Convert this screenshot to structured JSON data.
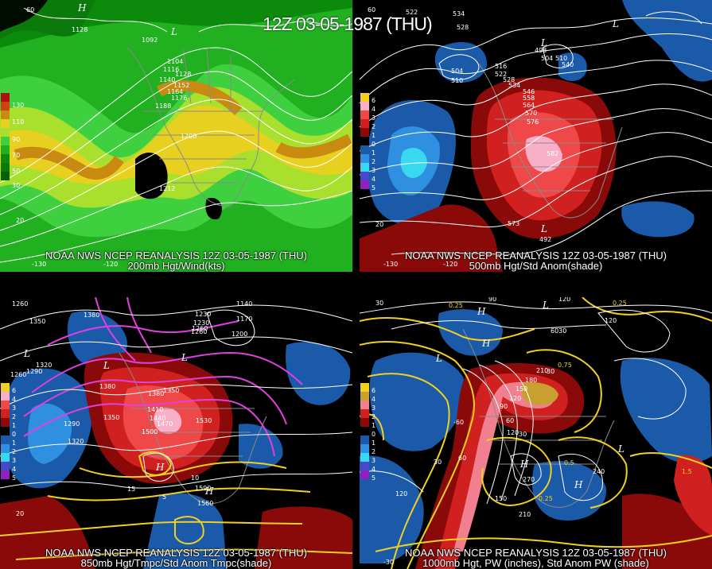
{
  "title": "12Z 03-05-1987 (THU)",
  "panels": [
    {
      "footer_line1": "NOAA NWS NCEP REANALYSIS 12Z 03-05-1987 (THU)",
      "footer_line2": "200mb Hgt/Wind(kts)",
      "legend": [
        "130",
        "110",
        "90",
        "70",
        "50",
        "30"
      ],
      "labels": [
        "1128",
        "1092",
        "1104",
        "1116",
        "1128",
        "1140",
        "1152",
        "1164",
        "1176",
        "1188",
        "1200",
        "1212"
      ],
      "axis": [
        "60",
        "-130",
        "-120",
        "20"
      ]
    },
    {
      "footer_line1": "NOAA NWS NCEP REANALYSIS 12Z 03-05-1987 (THU)",
      "footer_line2": "500mb Hgt/Std Anom(shade)",
      "legend": [
        "6",
        "4",
        "3",
        "2",
        "1",
        "0",
        "1",
        "2",
        "3",
        "4",
        "5"
      ],
      "labels": [
        "522",
        "534",
        "528",
        "504",
        "510",
        "516",
        "522",
        "528",
        "534",
        "546",
        "558",
        "564",
        "570",
        "576",
        "582",
        "573",
        "492",
        "498",
        "504",
        "510",
        "540"
      ],
      "axis": [
        "60",
        "-130",
        "-120",
        "20"
      ]
    },
    {
      "footer_line1": "NOAA NWS NCEP REANALYSIS 12Z 03-05-1987 (THU)",
      "footer_line2": "850mb Hgt/Tmpc/Std Anom Tmpc(shade)",
      "legend": [
        "6",
        "4",
        "3",
        "2",
        "1",
        "0",
        "1",
        "2",
        "3",
        "4",
        "5"
      ],
      "labels": [
        "1260",
        "1350",
        "1380",
        "1320",
        "1290",
        "1260",
        "1320",
        "1290",
        "1230",
        "1260",
        "1200",
        "1170",
        "1140",
        "1230",
        "1260",
        "1380",
        "1350",
        "1410",
        "1440",
        "1470",
        "1500",
        "1530",
        "1560",
        "1590",
        "1350",
        "1380",
        "15",
        "10",
        "5"
      ],
      "axis": [
        "20"
      ]
    },
    {
      "footer_line1": "NOAA NWS NCEP REANALYSIS 12Z 03-05-1987 (THU)",
      "footer_line2": "1000mb Hgt, PW (inches), Std Anom PW (shade)",
      "legend": [
        "6",
        "4",
        "3",
        "2",
        "1",
        "0",
        "1",
        "2",
        "3",
        "4",
        "5"
      ],
      "labels": [
        "0.25",
        "90",
        "120",
        "0.25",
        "6030",
        "120",
        "30",
        "210",
        "180",
        "150",
        "120",
        "90",
        "60",
        "30",
        "-60",
        "30",
        "60",
        "120",
        "270",
        "240",
        "210",
        "150",
        "120",
        "0.5",
        "0.25",
        "1.5",
        "0.75"
      ],
      "axis": [
        "30",
        "-30"
      ]
    }
  ]
}
